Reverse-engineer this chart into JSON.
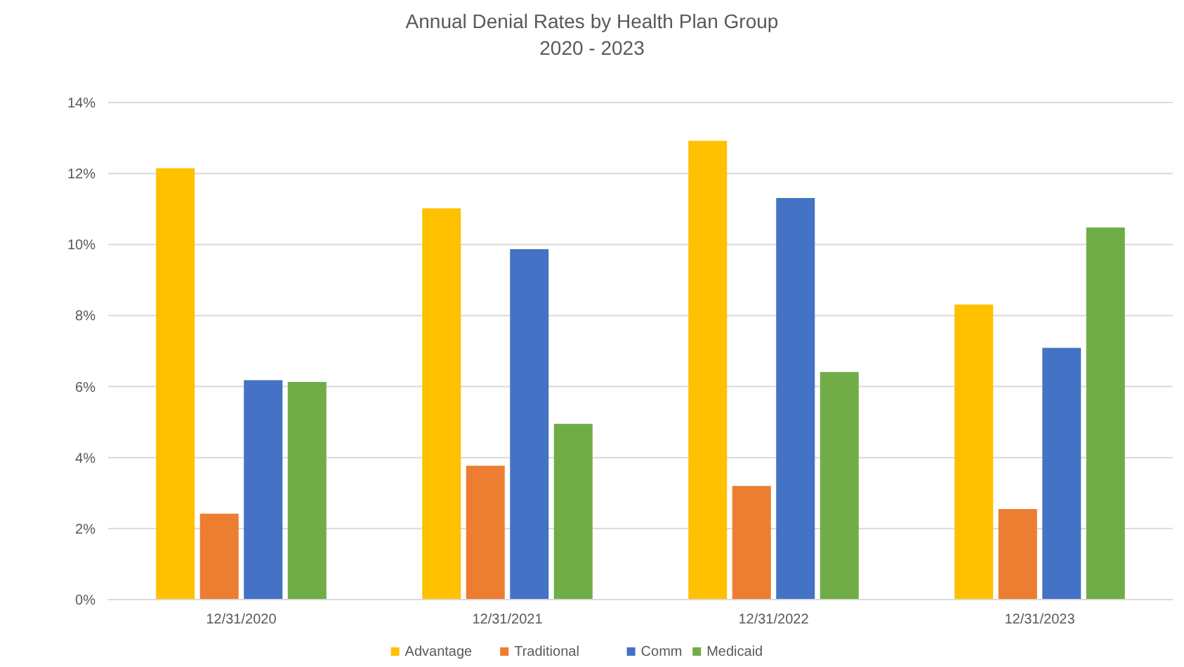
{
  "chart_data": {
    "type": "bar",
    "title": "Annual Denial Rates by Health Plan Group",
    "subtitle": "2020 - 2023",
    "categories": [
      "12/31/2020",
      "12/31/2021",
      "12/31/2022",
      "12/31/2023"
    ],
    "series": [
      {
        "name": "Advantage",
        "color": "#ffc000",
        "values": [
          12.15,
          11.02,
          12.92,
          8.31
        ]
      },
      {
        "name": "Traditional",
        "color": "#ed7d31",
        "values": [
          2.42,
          3.77,
          3.2,
          2.55
        ]
      },
      {
        "name": "Comm",
        "color": "#4472c4",
        "values": [
          6.18,
          9.87,
          11.31,
          7.09
        ]
      },
      {
        "name": "Medicaid",
        "color": "#70ad47",
        "values": [
          6.13,
          4.95,
          6.41,
          10.48
        ]
      }
    ],
    "ylim": [
      0,
      14
    ],
    "yticks": [
      {
        "value": 0,
        "label": "0%"
      },
      {
        "value": 2,
        "label": "2%"
      },
      {
        "value": 4,
        "label": "4%"
      },
      {
        "value": 6,
        "label": "6%"
      },
      {
        "value": 8,
        "label": "8%"
      },
      {
        "value": 10,
        "label": "10%"
      },
      {
        "value": 12,
        "label": "12%"
      },
      {
        "value": 14,
        "label": "14%"
      }
    ],
    "grid": "y",
    "legend": "bottom"
  }
}
